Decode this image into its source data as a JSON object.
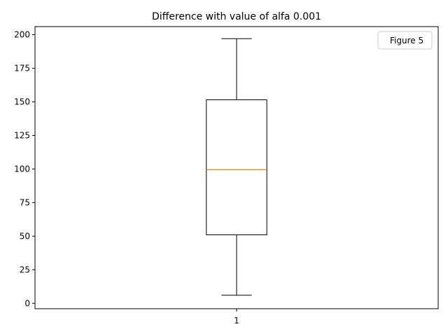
{
  "chart_data": {
    "type": "box",
    "title": "Difference with value of alfa  0.001",
    "xlabel": "",
    "ylabel": "",
    "categories": [
      "1"
    ],
    "boxes": [
      {
        "category": "1",
        "whisker_low": 6,
        "q1": 51,
        "median": 99.5,
        "q3": 151.5,
        "whisker_high": 197
      }
    ],
    "ylim": [
      -4,
      206
    ],
    "yticks": [
      0,
      25,
      50,
      75,
      100,
      125,
      150,
      175,
      200
    ],
    "xlim": [
      0.5,
      1.5
    ],
    "legend": {
      "entries": [
        "Figure 5"
      ],
      "position": "top-right"
    },
    "grid": false,
    "colors": {
      "box": "#000000",
      "median": "#ff7f0e",
      "axes": "#000000"
    }
  }
}
